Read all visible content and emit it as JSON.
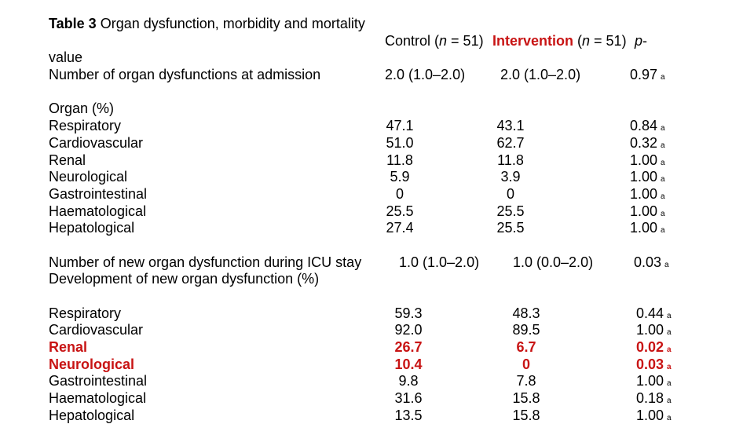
{
  "title": {
    "bold": "Table 3",
    "rest": " Organ dysfunction, morbidity and mortality"
  },
  "header": {
    "control_prefix": "Control (",
    "n1": "n",
    "control_suffix": " = 51)",
    "intervention": "Intervention",
    "interv_open": " (",
    "n2": "n",
    "interv_suffix": " = 51)",
    "p_italic": "p",
    "p_hyphen": "-",
    "value_wrap": "value"
  },
  "footnote_mark": "a",
  "colors": {
    "accent_red": "#c81414",
    "text": "#000000",
    "background": "#ffffff"
  },
  "rows": {
    "admission": {
      "label": "Number of organ dysfunctions at admission",
      "control": "2.0 (1.0–2.0)",
      "intervention": "2.0 (1.0–2.0)",
      "p": "0.97"
    },
    "organ_header": "Organ (%)",
    "organ": [
      {
        "label": "Respiratory",
        "control": "47.1",
        "intervention": "43.1",
        "p": "0.84",
        "highlight": false
      },
      {
        "label": "Cardiovascular",
        "control": "51.0",
        "intervention": "62.7",
        "p": "0.32",
        "highlight": false
      },
      {
        "label": "Renal",
        "control": "11.8",
        "intervention": "11.8",
        "p": "1.00",
        "highlight": false
      },
      {
        "label": "Neurological",
        "control": "5.9",
        "intervention": "3.9",
        "p": "1.00",
        "highlight": false
      },
      {
        "label": "Gastrointestinal",
        "control": "0",
        "intervention": "0",
        "p": "1.00",
        "highlight": false
      },
      {
        "label": "Haematological",
        "control": "25.5",
        "intervention": "25.5",
        "p": "1.00",
        "highlight": false
      },
      {
        "label": "Hepatological",
        "control": "27.4",
        "intervention": "25.5",
        "p": "1.00",
        "highlight": false
      }
    ],
    "icu": {
      "label": "Number of new organ dysfunction during ICU stay",
      "control": "1.0 (1.0–2.0)",
      "intervention": "1.0 (0.0–2.0)",
      "p": "0.03"
    },
    "development_label": "Development of new organ dysfunction (%)",
    "new_organ": [
      {
        "label": "Respiratory",
        "control": "59.3",
        "intervention": "48.3",
        "p": "0.44",
        "highlight": false
      },
      {
        "label": "Cardiovascular",
        "control": "92.0",
        "intervention": "89.5",
        "p": "1.00",
        "highlight": false
      },
      {
        "label": "Renal",
        "control": "26.7",
        "intervention": "6.7",
        "p": "0.02",
        "highlight": true
      },
      {
        "label": "Neurological",
        "control": "10.4",
        "intervention": "0",
        "p": "0.03",
        "highlight": true
      },
      {
        "label": "Gastrointestinal",
        "control": "9.8",
        "intervention": "7.8",
        "p": "1.00",
        "highlight": false
      },
      {
        "label": "Haematological",
        "control": "31.6",
        "intervention": "15.8",
        "p": "0.18",
        "highlight": false
      },
      {
        "label": "Hepatological",
        "control": "13.5",
        "intervention": "15.8",
        "p": "1.00",
        "highlight": false
      }
    ]
  }
}
